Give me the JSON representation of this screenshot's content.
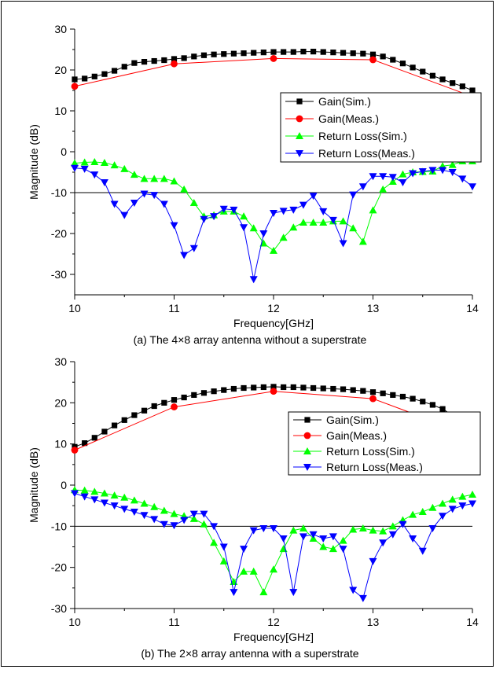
{
  "colors": {
    "gain_sim": "#000000",
    "gain_meas": "#ff0000",
    "rl_sim": "#00ff00",
    "rl_meas": "#0000ff",
    "threshold": "#000000"
  },
  "chart_data": [
    {
      "type": "line",
      "caption": "(a) The 4×8 array antenna without a superstrate",
      "xlabel": "Frequency[GHz]",
      "ylabel": "Magnitude (dB)",
      "xlim": [
        10,
        14
      ],
      "ylim": [
        -35,
        30
      ],
      "xticks": [
        10,
        11,
        12,
        13,
        14
      ],
      "yticks": [
        -30,
        -20,
        -10,
        0,
        10,
        20,
        30
      ],
      "grid": false,
      "legend_position": "center-right",
      "reference_line": -10,
      "series": [
        {
          "name": "Gain(Sim.)",
          "marker": "square",
          "color": "#000000",
          "x": [
            10.0,
            10.1,
            10.2,
            10.3,
            10.4,
            10.5,
            10.6,
            10.7,
            10.8,
            10.9,
            11.0,
            11.1,
            11.2,
            11.3,
            11.4,
            11.5,
            11.6,
            11.7,
            11.8,
            11.9,
            12.0,
            12.1,
            12.2,
            12.3,
            12.4,
            12.5,
            12.6,
            12.7,
            12.8,
            12.9,
            13.0,
            13.1,
            13.2,
            13.3,
            13.4,
            13.5,
            13.6,
            13.7,
            13.8,
            13.9,
            14.0
          ],
          "y": [
            17.7,
            17.9,
            18.4,
            19.0,
            19.8,
            20.8,
            21.7,
            22.0,
            22.2,
            22.4,
            22.7,
            22.9,
            23.3,
            23.6,
            23.8,
            23.9,
            24.0,
            24.1,
            24.2,
            24.3,
            24.4,
            24.4,
            24.4,
            24.5,
            24.5,
            24.4,
            24.3,
            24.2,
            24.1,
            24.0,
            23.8,
            23.3,
            22.5,
            21.6,
            20.6,
            19.6,
            18.6,
            17.7,
            16.8,
            16.0,
            15.0
          ]
        },
        {
          "name": "Gain(Meas.)",
          "marker": "circle",
          "color": "#ff0000",
          "x": [
            10,
            11,
            12,
            13,
            14
          ],
          "y": [
            16.0,
            21.5,
            22.8,
            22.5,
            13.5
          ]
        },
        {
          "name": "Return Loss(Sim.)",
          "marker": "triangle-up",
          "color": "#00ff00",
          "x": [
            10.0,
            10.1,
            10.2,
            10.3,
            10.4,
            10.5,
            10.6,
            10.7,
            10.8,
            10.9,
            11.0,
            11.1,
            11.2,
            11.3,
            11.4,
            11.5,
            11.6,
            11.7,
            11.8,
            11.9,
            12.0,
            12.1,
            12.2,
            12.3,
            12.4,
            12.5,
            12.6,
            12.7,
            12.8,
            12.9,
            13.0,
            13.1,
            13.2,
            13.3,
            13.4,
            13.5,
            13.6,
            13.7,
            13.8,
            13.9,
            14.0
          ],
          "y": [
            -2.8,
            -2.6,
            -2.5,
            -2.7,
            -3.3,
            -4.2,
            -5.6,
            -6.6,
            -6.6,
            -6.6,
            -7.2,
            -9.2,
            -12.5,
            -15.8,
            -15.5,
            -14.6,
            -14.6,
            -15.8,
            -18.7,
            -22.4,
            -24.2,
            -21.0,
            -18.5,
            -17.3,
            -17.3,
            -17.3,
            -17.0,
            -17.0,
            -18.7,
            -22.0,
            -14.3,
            -9.2,
            -7.3,
            -5.5,
            -5.0,
            -4.9,
            -4.8,
            -3.5,
            -3.2,
            -2.3,
            -2.3
          ]
        },
        {
          "name": "Return Loss(Meas.)",
          "marker": "triangle-down",
          "color": "#0000ff",
          "x": [
            10.0,
            10.1,
            10.2,
            10.3,
            10.4,
            10.5,
            10.6,
            10.7,
            10.8,
            10.9,
            11.0,
            11.1,
            11.2,
            11.3,
            11.4,
            11.5,
            11.6,
            11.7,
            11.8,
            11.9,
            12.0,
            12.1,
            12.2,
            12.3,
            12.4,
            12.5,
            12.6,
            12.7,
            12.8,
            12.9,
            13.0,
            13.1,
            13.2,
            13.3,
            13.4,
            13.5,
            13.6,
            13.7,
            13.8,
            13.9,
            14.0
          ],
          "y": [
            -4.0,
            -4.2,
            -5.6,
            -7.5,
            -12.8,
            -15.5,
            -12.5,
            -10.3,
            -10.6,
            -12.8,
            -18.0,
            -25.3,
            -23.6,
            -16.5,
            -15.8,
            -14.0,
            -14.2,
            -18.5,
            -31.2,
            -20.0,
            -15.0,
            -14.5,
            -14.2,
            -13.0,
            -10.8,
            -14.6,
            -16.7,
            -22.4,
            -10.5,
            -8.5,
            -6.0,
            -6.0,
            -6.2,
            -7.5,
            -5.3,
            -4.8,
            -4.5,
            -4.5,
            -5.0,
            -6.6,
            -8.5
          ]
        }
      ]
    },
    {
      "type": "line",
      "caption": "(b) The 2×8 array antenna with a superstrate",
      "xlabel": "Frequency[GHz]",
      "ylabel": "Magnitude (dB)",
      "xlim": [
        10,
        14
      ],
      "ylim": [
        -30,
        30
      ],
      "xticks": [
        10,
        11,
        12,
        13,
        14
      ],
      "yticks": [
        -30,
        -20,
        -10,
        0,
        10,
        20,
        30
      ],
      "grid": false,
      "legend_position": "center-right",
      "reference_line": -10,
      "series": [
        {
          "name": "Gain(Sim.)",
          "marker": "square",
          "color": "#000000",
          "x": [
            10.0,
            10.1,
            10.2,
            10.3,
            10.4,
            10.5,
            10.6,
            10.7,
            10.8,
            10.9,
            11.0,
            11.1,
            11.2,
            11.3,
            11.4,
            11.5,
            11.6,
            11.7,
            11.8,
            11.9,
            12.0,
            12.1,
            12.2,
            12.3,
            12.4,
            12.5,
            12.6,
            12.7,
            12.8,
            12.9,
            13.0,
            13.1,
            13.2,
            13.3,
            13.4,
            13.5,
            13.6,
            13.7,
            13.8,
            13.9
          ],
          "y": [
            9.3,
            10.2,
            11.5,
            13.0,
            14.5,
            15.8,
            17.0,
            18.1,
            19.2,
            20.0,
            20.7,
            21.3,
            21.9,
            22.4,
            22.8,
            23.1,
            23.4,
            23.6,
            23.7,
            23.8,
            23.9,
            23.8,
            23.8,
            23.7,
            23.6,
            23.5,
            23.4,
            23.3,
            23.1,
            22.9,
            22.6,
            22.3,
            21.9,
            21.5,
            21.0,
            20.3,
            19.5,
            18.5,
            17.0,
            15.5
          ]
        },
        {
          "name": "Gain(Meas.)",
          "marker": "circle",
          "color": "#ff0000",
          "x": [
            10,
            11,
            12,
            13,
            14
          ],
          "y": [
            8.5,
            19.0,
            22.8,
            21.0,
            12.0
          ]
        },
        {
          "name": "Return Loss(Sim.)",
          "marker": "triangle-up",
          "color": "#00ff00",
          "x": [
            10.0,
            10.1,
            10.2,
            10.3,
            10.4,
            10.5,
            10.6,
            10.7,
            10.8,
            10.9,
            11.0,
            11.1,
            11.2,
            11.3,
            11.4,
            11.5,
            11.6,
            11.7,
            11.8,
            11.9,
            12.0,
            12.1,
            12.2,
            12.3,
            12.4,
            12.5,
            12.6,
            12.7,
            12.8,
            12.9,
            13.0,
            13.1,
            13.2,
            13.3,
            13.4,
            13.5,
            13.6,
            13.7,
            13.8,
            13.9,
            14.0
          ],
          "y": [
            -1.2,
            -1.3,
            -1.6,
            -2.0,
            -2.5,
            -3.0,
            -3.7,
            -4.5,
            -5.3,
            -6.2,
            -7.0,
            -7.5,
            -8.2,
            -9.5,
            -14.0,
            -18.5,
            -23.5,
            -21.0,
            -21.0,
            -26.0,
            -20.5,
            -15.5,
            -11.0,
            -10.5,
            -13.0,
            -15.0,
            -15.5,
            -13.5,
            -10.8,
            -10.5,
            -11.0,
            -11.2,
            -10.0,
            -8.5,
            -7.2,
            -6.5,
            -5.5,
            -4.5,
            -3.5,
            -2.8,
            -2.3
          ]
        },
        {
          "name": "Return Loss(Meas.)",
          "marker": "triangle-down",
          "color": "#0000ff",
          "x": [
            10.0,
            10.1,
            10.2,
            10.3,
            10.4,
            10.5,
            10.6,
            10.7,
            10.8,
            10.9,
            11.0,
            11.1,
            11.2,
            11.3,
            11.4,
            11.5,
            11.6,
            11.7,
            11.8,
            11.9,
            12.0,
            12.1,
            12.2,
            12.3,
            12.4,
            12.5,
            12.6,
            12.7,
            12.8,
            12.9,
            13.0,
            13.1,
            13.2,
            13.3,
            13.4,
            13.5,
            13.6,
            13.7,
            13.8,
            13.9,
            14.0
          ],
          "y": [
            -2.0,
            -2.8,
            -3.5,
            -4.3,
            -5.0,
            -5.8,
            -6.5,
            -7.3,
            -8.3,
            -9.5,
            -9.8,
            -8.5,
            -7.0,
            -7.0,
            -10.0,
            -15.0,
            -26.0,
            -15.5,
            -11.0,
            -10.5,
            -10.5,
            -13.0,
            -26.0,
            -12.5,
            -12.0,
            -13.0,
            -12.5,
            -15.5,
            -25.5,
            -27.5,
            -18.5,
            -14.0,
            -12.0,
            -9.5,
            -13.0,
            -16.0,
            -10.5,
            -7.5,
            -5.8,
            -5.0,
            -4.5
          ]
        }
      ]
    }
  ]
}
